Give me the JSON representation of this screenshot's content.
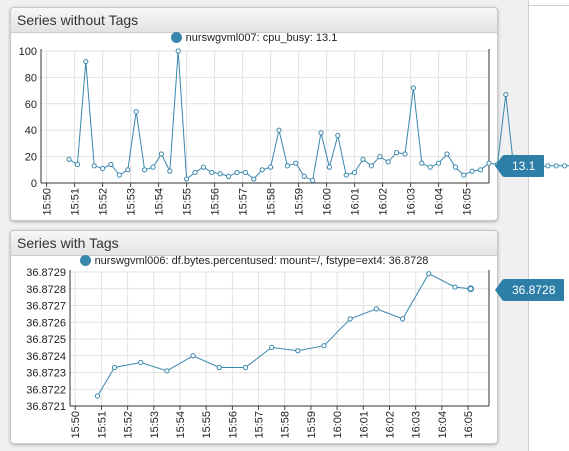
{
  "widgets": [
    {
      "title": "Series without Tags",
      "legend": "nurswgvml007: cpu_busy: 13.1",
      "value_badge": "13.1",
      "colors": {
        "series": "#3a87ad",
        "badge": "#2e7fa8"
      },
      "chart_data": {
        "type": "line",
        "x_tick_labels": [
          "15:50",
          "15:51",
          "15:52",
          "15:53",
          "15:54",
          "15:55",
          "15:56",
          "15:57",
          "15:58",
          "15:59",
          "16:00",
          "16:01",
          "16:02",
          "16:03",
          "16:04",
          "16:05"
        ],
        "y_tick_labels": [
          "0",
          "20",
          "40",
          "60",
          "80",
          "100"
        ],
        "ylim": [
          0,
          100
        ],
        "xlim": [
          "15:49.8",
          "16:05.8"
        ],
        "grid": true,
        "x": [
          15.8,
          16.1,
          16.4,
          16.7,
          17.0,
          17.3,
          17.6,
          17.9,
          18.2,
          18.5,
          18.8,
          19.1,
          19.4,
          19.7,
          20.0,
          20.3,
          20.6,
          20.9,
          21.2,
          21.5,
          21.8,
          22.1,
          22.4,
          22.7,
          23.0,
          23.3,
          23.6,
          23.9,
          24.2,
          24.5,
          24.8,
          25.1,
          25.4,
          25.7,
          26.0,
          26.3,
          26.6,
          26.9,
          27.2,
          27.5,
          27.8,
          28.1,
          28.4,
          28.7,
          29.0,
          29.3,
          29.6,
          29.9,
          30.2,
          30.5,
          30.8,
          31.1,
          31.4,
          31.7,
          32.0,
          32.3,
          32.6,
          32.9,
          33.2,
          33.5,
          33.8,
          34.1,
          34.4
        ],
        "series": [
          {
            "name": "nurswgvml007: cpu_busy",
            "values": [
              18,
              14,
              92,
              13,
              11,
              14,
              6,
              10,
              54,
              10,
              12,
              22,
              9,
              100,
              3,
              8,
              12,
              8,
              7,
              5,
              8,
              8,
              3,
              10,
              12,
              40,
              13,
              15,
              5,
              2,
              38,
              12,
              36,
              6,
              8,
              18,
              13,
              20,
              16,
              23,
              22,
              72,
              15,
              12,
              15,
              22,
              12,
              6,
              9,
              10,
              15,
              14,
              67,
              8,
              13,
              13,
              12,
              13,
              13,
              13,
              13,
              13,
              13.1
            ]
          }
        ]
      }
    },
    {
      "title": "Series with Tags",
      "legend": "nurswgvml006: df.bytes.percentused: mount=/, fstype=ext4: 36.8728",
      "value_badge": "36.8728",
      "colors": {
        "series": "#3a87ad",
        "badge": "#2e7fa8"
      },
      "chart_data": {
        "type": "line",
        "x_tick_labels": [
          "15:50",
          "15:51",
          "15:52",
          "15:53",
          "15:54",
          "15:55",
          "15:56",
          "15:57",
          "15:58",
          "15:59",
          "16:00",
          "16:01",
          "16:02",
          "16:03",
          "16:04",
          "16:05"
        ],
        "y_tick_labels": [
          "36.8721",
          "36.8722",
          "36.8723",
          "36.8724",
          "36.8725",
          "36.8726",
          "36.8727",
          "36.8728",
          "36.8729"
        ],
        "ylim": [
          36.8721,
          36.8729
        ],
        "xlim": [
          "15:49.8",
          "16:05.8"
        ],
        "grid": true,
        "x": [
          15.85,
          16.5,
          17.5,
          18.5,
          19.5,
          20.5,
          21.5,
          22.5,
          23.5,
          24.5,
          25.5,
          26.5,
          27.5,
          28.5,
          29.5,
          30.1
        ],
        "series": [
          {
            "name": "nurswgvml006: df.bytes.percentused",
            "values": [
              36.87216,
              36.87233,
              36.87236,
              36.87231,
              36.8724,
              36.87233,
              36.87233,
              36.87245,
              36.87243,
              36.87246,
              36.87262,
              36.87268,
              36.87262,
              36.87289,
              36.87281,
              36.8728
            ]
          }
        ]
      }
    }
  ]
}
